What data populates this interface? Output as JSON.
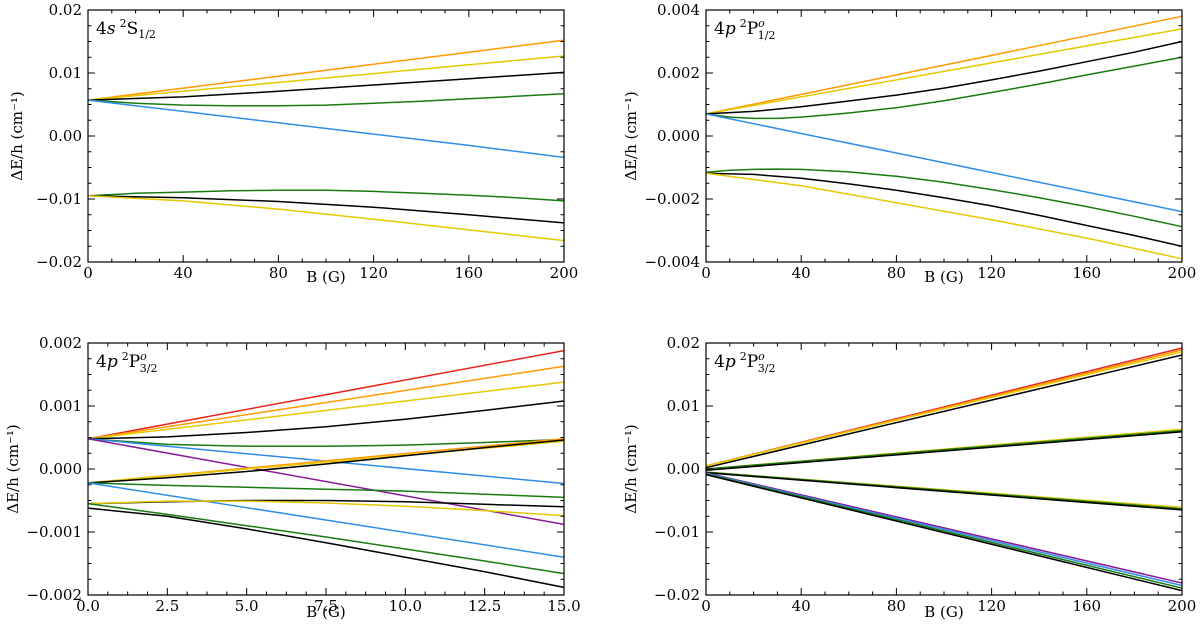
{
  "colors": {
    "orange": "#ff9a00",
    "gold": "#e6c800",
    "black": "#000000",
    "green": "#1a7a12",
    "blue": "#2e8ee8",
    "red": "#e8261e",
    "purple": "#8a1a9a"
  },
  "chart_data": [
    {
      "id": "p1",
      "type": "line",
      "title": {
        "lead": "4",
        "ital": "s",
        "sup": "2",
        "term": "S",
        "sub": "1/2"
      },
      "xlabel": "B (G)",
      "ylabel": "ΔE/h (cm⁻¹)",
      "xlim": [
        0,
        200
      ],
      "ylim": [
        -0.02,
        0.02
      ],
      "xticks": [
        0,
        40,
        80,
        120,
        160,
        200
      ],
      "xticklabels": [
        "0",
        "40",
        "80",
        "120",
        "160",
        "200"
      ],
      "yticks": [
        -0.02,
        -0.01,
        0.0,
        0.01,
        0.02
      ],
      "yticklabels": [
        "−0.02",
        "−0.01",
        "0.00",
        "0.01",
        "0.02"
      ],
      "series": [
        {
          "color": "orange",
          "x": [
            0,
            40,
            80,
            120,
            160,
            200
          ],
          "y": [
            0.0057,
            0.0076,
            0.0095,
            0.0114,
            0.0133,
            0.0152
          ]
        },
        {
          "color": "gold",
          "x": [
            0,
            40,
            80,
            120,
            160,
            200
          ],
          "y": [
            0.0057,
            0.0071,
            0.0085,
            0.0099,
            0.0113,
            0.0127
          ]
        },
        {
          "color": "black",
          "x": [
            0,
            40,
            80,
            120,
            160,
            200
          ],
          "y": [
            0.0057,
            0.0062,
            0.0071,
            0.0081,
            0.0091,
            0.0101
          ]
        },
        {
          "color": "green",
          "x": [
            0,
            20,
            40,
            60,
            80,
            100,
            120,
            140,
            160,
            180,
            200
          ],
          "y": [
            0.0057,
            0.0052,
            0.0049,
            0.0048,
            0.0048,
            0.0049,
            0.0052,
            0.0055,
            0.0059,
            0.0063,
            0.0067
          ]
        },
        {
          "color": "blue",
          "x": [
            0,
            40,
            80,
            120,
            160,
            200
          ],
          "y": [
            0.0057,
            0.0039,
            0.0021,
            0.0003,
            -0.0015,
            -0.0034
          ]
        },
        {
          "color": "green",
          "x": [
            0,
            20,
            40,
            60,
            80,
            100,
            120,
            140,
            160,
            180,
            200
          ],
          "y": [
            -0.0095,
            -0.0091,
            -0.0089,
            -0.0087,
            -0.0086,
            -0.0086,
            -0.0088,
            -0.0091,
            -0.0094,
            -0.0098,
            -0.0103
          ]
        },
        {
          "color": "black",
          "x": [
            0,
            40,
            80,
            120,
            160,
            200
          ],
          "y": [
            -0.0095,
            -0.0098,
            -0.0104,
            -0.0113,
            -0.0125,
            -0.0138
          ]
        },
        {
          "color": "gold",
          "x": [
            0,
            40,
            80,
            120,
            160,
            200
          ],
          "y": [
            -0.0095,
            -0.0103,
            -0.0116,
            -0.0132,
            -0.0149,
            -0.0166
          ]
        }
      ]
    },
    {
      "id": "p2",
      "type": "line",
      "title": {
        "lead": "4",
        "ital": "p",
        "sup": "2",
        "term": "P",
        "termsup": "o",
        "sub": "1/2"
      },
      "xlabel": "B (G)",
      "ylabel": "ΔE/h (cm⁻¹)",
      "xlim": [
        0,
        200
      ],
      "ylim": [
        -0.004,
        0.004
      ],
      "xticks": [
        0,
        40,
        80,
        120,
        160,
        200
      ],
      "xticklabels": [
        "0",
        "40",
        "80",
        "120",
        "160",
        "200"
      ],
      "yticks": [
        -0.004,
        -0.002,
        0.0,
        0.002,
        0.004
      ],
      "yticklabels": [
        "−0.004",
        "−0.002",
        "0.000",
        "0.002",
        "0.004"
      ],
      "series": [
        {
          "color": "orange",
          "x": [
            0,
            40,
            80,
            120,
            160,
            200
          ],
          "y": [
            0.0007,
            0.00132,
            0.00194,
            0.00256,
            0.00318,
            0.0038
          ]
        },
        {
          "color": "gold",
          "x": [
            0,
            40,
            80,
            120,
            160,
            200
          ],
          "y": [
            0.0007,
            0.00124,
            0.00178,
            0.00232,
            0.00286,
            0.0034
          ]
        },
        {
          "color": "black",
          "x": [
            0,
            20,
            40,
            60,
            80,
            100,
            120,
            140,
            160,
            180,
            200
          ],
          "y": [
            0.0007,
            0.00078,
            0.00093,
            0.00111,
            0.0013,
            0.00152,
            0.00178,
            0.00206,
            0.00236,
            0.00266,
            0.003
          ]
        },
        {
          "color": "green",
          "x": [
            0,
            10,
            20,
            30,
            40,
            60,
            80,
            100,
            120,
            140,
            160,
            180,
            200
          ],
          "y": [
            0.0007,
            0.0006,
            0.00056,
            0.00056,
            0.0006,
            0.00073,
            0.0009,
            0.00112,
            0.00138,
            0.00165,
            0.00194,
            0.00222,
            0.0025
          ]
        },
        {
          "color": "blue",
          "x": [
            0,
            40,
            80,
            120,
            160,
            200
          ],
          "y": [
            0.0007,
            8e-05,
            -0.00054,
            -0.00116,
            -0.00178,
            -0.0024
          ]
        },
        {
          "color": "green",
          "x": [
            0,
            10,
            20,
            30,
            40,
            60,
            80,
            100,
            120,
            140,
            160,
            180,
            200
          ],
          "y": [
            -0.00115,
            -0.00109,
            -0.00106,
            -0.00105,
            -0.00106,
            -0.00114,
            -0.00128,
            -0.00147,
            -0.0017,
            -0.00196,
            -0.00224,
            -0.00255,
            -0.00288
          ]
        },
        {
          "color": "black",
          "x": [
            0,
            20,
            40,
            60,
            80,
            100,
            120,
            140,
            160,
            180,
            200
          ],
          "y": [
            -0.00118,
            -0.00122,
            -0.00134,
            -0.00152,
            -0.00172,
            -0.00196,
            -0.00222,
            -0.00252,
            -0.00284,
            -0.00316,
            -0.0035
          ]
        },
        {
          "color": "gold",
          "x": [
            0,
            40,
            80,
            120,
            160,
            200
          ],
          "y": [
            -0.00118,
            -0.00158,
            -0.00212,
            -0.00266,
            -0.00324,
            -0.0039
          ]
        }
      ]
    },
    {
      "id": "p3",
      "type": "line",
      "title": {
        "lead": "4",
        "ital": "p",
        "sup": "2",
        "term": "P",
        "termsup": "o",
        "sub": "3/2"
      },
      "xlabel": "B (G)",
      "ylabel": "ΔE/h (cm⁻¹)",
      "xlim": [
        0,
        15
      ],
      "ylim": [
        -0.002,
        0.002
      ],
      "xticks": [
        0,
        2.5,
        5,
        7.5,
        10,
        12.5,
        15
      ],
      "xticklabels": [
        "0.0",
        "2.5",
        "5.0",
        "7.5",
        "10.0",
        "12.5",
        "15.0"
      ],
      "yticks": [
        -0.002,
        -0.001,
        0.0,
        0.001,
        0.002
      ],
      "yticklabels": [
        "−0.002",
        "−0.001",
        "0.000",
        "0.001",
        "0.002"
      ],
      "series": [
        {
          "color": "red",
          "x": [
            0,
            15
          ],
          "y": [
            0.00048,
            0.00188
          ]
        },
        {
          "color": "orange",
          "x": [
            0,
            15
          ],
          "y": [
            0.00048,
            0.00163
          ]
        },
        {
          "color": "gold",
          "x": [
            0,
            15
          ],
          "y": [
            0.00048,
            0.00138
          ]
        },
        {
          "color": "black",
          "x": [
            0,
            2.5,
            5,
            7.5,
            10,
            12.5,
            15
          ],
          "y": [
            0.00048,
            0.00051,
            0.00058,
            0.00067,
            0.00079,
            0.00093,
            0.00108
          ]
        },
        {
          "color": "green",
          "x": [
            0,
            2.5,
            5,
            7.5,
            10,
            12.5,
            15
          ],
          "y": [
            0.00048,
            0.00039,
            0.00036,
            0.00036,
            0.00038,
            0.00042,
            0.00047
          ]
        },
        {
          "color": "blue",
          "x": [
            0,
            15
          ],
          "y": [
            0.00048,
            -0.00023
          ]
        },
        {
          "color": "purple",
          "x": [
            0,
            15
          ],
          "y": [
            0.00048,
            -0.00088
          ]
        },
        {
          "color": "orange",
          "x": [
            0,
            15
          ],
          "y": [
            -0.00022,
            0.00048
          ]
        },
        {
          "color": "gold",
          "x": [
            0,
            15
          ],
          "y": [
            -0.00022,
            0.00044
          ]
        },
        {
          "color": "black",
          "x": [
            0,
            2.5,
            5,
            7.5,
            10,
            12.5,
            15
          ],
          "y": [
            -0.00022,
            -0.00014,
            -4e-05,
            8e-05,
            0.00021,
            0.00034,
            0.00046
          ]
        },
        {
          "color": "green",
          "x": [
            0,
            2.5,
            5,
            7.5,
            10,
            12.5,
            15
          ],
          "y": [
            -0.00022,
            -0.00026,
            -0.00029,
            -0.00032,
            -0.00035,
            -0.0004,
            -0.00045
          ]
        },
        {
          "color": "blue",
          "x": [
            0,
            15
          ],
          "y": [
            -0.00022,
            -0.0014
          ]
        },
        {
          "color": "black",
          "x": [
            0,
            2.5,
            5,
            7.5,
            10,
            12.5,
            15
          ],
          "y": [
            -0.00055,
            -0.00052,
            -0.0005,
            -0.0005,
            -0.00052,
            -0.00056,
            -0.0006
          ]
        },
        {
          "color": "gold",
          "x": [
            0,
            2.5,
            5,
            7.5,
            10,
            12.5,
            15
          ],
          "y": [
            -0.00055,
            -0.00051,
            -0.00051,
            -0.00054,
            -0.00059,
            -0.00066,
            -0.00074
          ]
        },
        {
          "color": "green",
          "x": [
            0,
            2.5,
            5,
            7.5,
            10,
            12.5,
            15
          ],
          "y": [
            -0.00055,
            -0.00072,
            -0.0009,
            -0.00108,
            -0.00127,
            -0.00146,
            -0.00166
          ]
        },
        {
          "color": "black",
          "x": [
            0,
            2.5,
            5,
            7.5,
            10,
            12.5,
            15
          ],
          "y": [
            -0.00062,
            -0.00075,
            -0.00095,
            -0.00117,
            -0.0014,
            -0.00163,
            -0.00188
          ]
        }
      ]
    },
    {
      "id": "p4",
      "type": "line",
      "title": {
        "lead": "4",
        "ital": "p",
        "sup": "2",
        "term": "P",
        "termsup": "o",
        "sub": "3/2"
      },
      "xlabel": "B (G)",
      "ylabel": "ΔE/h (cm⁻¹)",
      "xlim": [
        0,
        200
      ],
      "ylim": [
        -0.02,
        0.02
      ],
      "xticks": [
        0,
        40,
        80,
        120,
        160,
        200
      ],
      "xticklabels": [
        "0",
        "40",
        "80",
        "120",
        "160",
        "200"
      ],
      "yticks": [
        -0.02,
        -0.01,
        0.0,
        0.01,
        0.02
      ],
      "yticklabels": [
        "−0.02",
        "−0.01",
        "0.00",
        "0.01",
        "0.02"
      ],
      "series": [
        {
          "color": "red",
          "x": [
            0,
            200
          ],
          "y": [
            0.0005,
            0.0192
          ]
        },
        {
          "color": "orange",
          "x": [
            0,
            200
          ],
          "y": [
            0.0005,
            0.0189
          ]
        },
        {
          "color": "gold",
          "x": [
            0,
            200
          ],
          "y": [
            0.0005,
            0.0186
          ]
        },
        {
          "color": "black",
          "x": [
            0,
            200
          ],
          "y": [
            0.0002,
            0.0181
          ]
        },
        {
          "color": "gold",
          "x": [
            0,
            200
          ],
          "y": [
            0.0,
            0.0063
          ]
        },
        {
          "color": "green",
          "x": [
            0,
            200
          ],
          "y": [
            0.0,
            0.0061
          ]
        },
        {
          "color": "black",
          "x": [
            0,
            200
          ],
          "y": [
            -0.0002,
            0.0059
          ]
        },
        {
          "color": "gold",
          "x": [
            0,
            200
          ],
          "y": [
            -0.0005,
            -0.0061
          ]
        },
        {
          "color": "green",
          "x": [
            0,
            200
          ],
          "y": [
            -0.0005,
            -0.0063
          ]
        },
        {
          "color": "black",
          "x": [
            0,
            200
          ],
          "y": [
            -0.0006,
            -0.0065
          ]
        },
        {
          "color": "purple",
          "x": [
            0,
            200
          ],
          "y": [
            -0.0006,
            -0.0181
          ]
        },
        {
          "color": "blue",
          "x": [
            0,
            200
          ],
          "y": [
            -0.0007,
            -0.0185
          ]
        },
        {
          "color": "green",
          "x": [
            0,
            200
          ],
          "y": [
            -0.0008,
            -0.0189
          ]
        },
        {
          "color": "black",
          "x": [
            0,
            200
          ],
          "y": [
            -0.0009,
            -0.0193
          ]
        }
      ]
    }
  ]
}
